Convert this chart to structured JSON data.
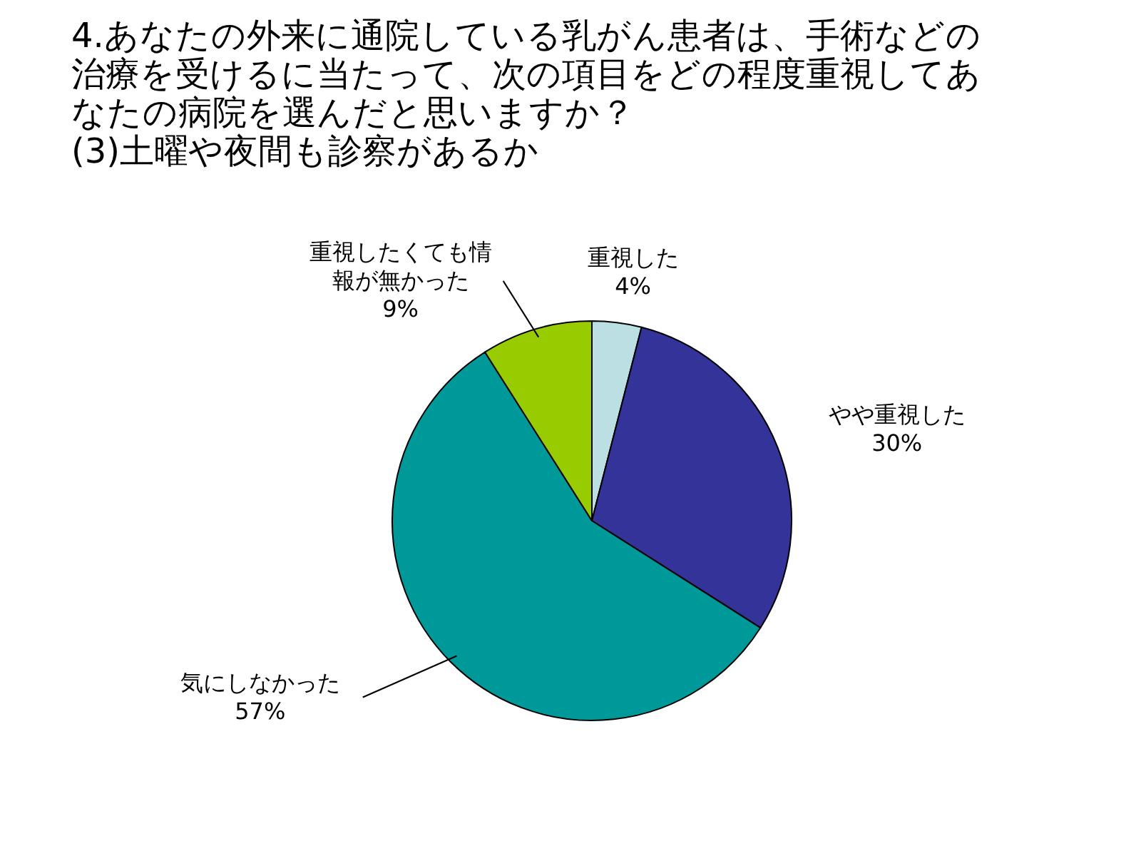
{
  "chart_data": {
    "type": "pie",
    "title": "4.あなたの外来に通院している乳がん患者は、手術などの治療を受けるに当たって、次の項目をどの程度重視してあなたの病院を選んだと思いますか？",
    "subtitle": "(3)土曜や夜間も診察があるか",
    "categories": [
      "重視した",
      "やや重視した",
      "気にしなかった",
      "重視したくても情報が無かった"
    ],
    "values": [
      4,
      30,
      57,
      9
    ],
    "value_labels": [
      "4%",
      "30%",
      "57%",
      "9%"
    ],
    "colors": [
      "#bbdfe3",
      "#333399",
      "#009999",
      "#99cc00"
    ]
  }
}
